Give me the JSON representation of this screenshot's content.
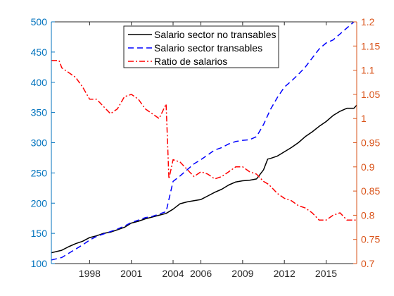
{
  "chart_data": {
    "type": "line",
    "title": "",
    "xlabel": "",
    "ylabel_left": "",
    "ylabel_right": "",
    "x_ticks": [
      "1998",
      "2001",
      "2004",
      "2006",
      "2009",
      "2012",
      "2015"
    ],
    "x_tick_years": [
      1998,
      2001,
      2004,
      2006,
      2009,
      2012,
      2015
    ],
    "xlim": [
      1995.25,
      2017.2
    ],
    "left_axis": {
      "ylim": [
        100,
        500
      ],
      "ticks": [
        100,
        150,
        200,
        250,
        300,
        350,
        400,
        450,
        500
      ],
      "tick_labels": [
        "100",
        "150",
        "200",
        "250",
        "300",
        "350",
        "400",
        "450",
        "500"
      ],
      "color": "#0072BD"
    },
    "right_axis": {
      "ylim": [
        0.7,
        1.2
      ],
      "ticks": [
        0.7,
        0.75,
        0.8,
        0.85,
        0.9,
        0.95,
        1.0,
        1.05,
        1.1,
        1.15,
        1.2
      ],
      "tick_labels": [
        "0.7",
        "0.75",
        "0.8",
        "0.85",
        "0.9",
        "0.95",
        "1",
        "1.05",
        "1.1",
        "1.15",
        "1.2"
      ],
      "color": "#D95319"
    },
    "grid": false,
    "legend_position": "top-center",
    "series": [
      {
        "name": "Salario sector no transables",
        "axis": "left",
        "color": "#000000",
        "style": "solid",
        "points": [
          [
            1995.25,
            118
          ],
          [
            1996,
            122
          ],
          [
            1996.5,
            128
          ],
          [
            1997,
            133
          ],
          [
            1997.5,
            137
          ],
          [
            1998,
            143
          ],
          [
            1998.5,
            146
          ],
          [
            1999,
            150
          ],
          [
            1999.5,
            152
          ],
          [
            2000,
            156
          ],
          [
            2000.5,
            160
          ],
          [
            2001,
            167
          ],
          [
            2001.5,
            170
          ],
          [
            2002,
            174
          ],
          [
            2002.5,
            177
          ],
          [
            2003,
            180
          ],
          [
            2003.5,
            183
          ],
          [
            2004,
            190
          ],
          [
            2004.5,
            199
          ],
          [
            2005,
            202
          ],
          [
            2005.5,
            204
          ],
          [
            2006,
            206
          ],
          [
            2006.5,
            212
          ],
          [
            2007,
            218
          ],
          [
            2007.5,
            223
          ],
          [
            2008,
            230
          ],
          [
            2008.5,
            235
          ],
          [
            2009,
            237
          ],
          [
            2009.5,
            238
          ],
          [
            2010,
            240
          ],
          [
            2010.5,
            255
          ],
          [
            2010.8,
            273
          ],
          [
            2011,
            274
          ],
          [
            2011.5,
            278
          ],
          [
            2012,
            285
          ],
          [
            2012.5,
            292
          ],
          [
            2013,
            300
          ],
          [
            2013.5,
            310
          ],
          [
            2014,
            318
          ],
          [
            2014.5,
            327
          ],
          [
            2015,
            335
          ],
          [
            2015.5,
            345
          ],
          [
            2016,
            352
          ],
          [
            2016.5,
            357
          ],
          [
            2017,
            357
          ],
          [
            2017.2,
            362
          ]
        ]
      },
      {
        "name": "Salario sector transables",
        "axis": "left",
        "color": "#0000FF",
        "style": "dashed",
        "points": [
          [
            1995.25,
            106
          ],
          [
            1996,
            110
          ],
          [
            1996.5,
            117
          ],
          [
            1997,
            124
          ],
          [
            1997.5,
            131
          ],
          [
            1998,
            139
          ],
          [
            1998.5,
            145
          ],
          [
            1999,
            149
          ],
          [
            1999.5,
            153
          ],
          [
            2000,
            157
          ],
          [
            2000.5,
            162
          ],
          [
            2001,
            168
          ],
          [
            2001.5,
            172
          ],
          [
            2002,
            176
          ],
          [
            2002.5,
            178
          ],
          [
            2003,
            182
          ],
          [
            2003.5,
            186
          ],
          [
            2004,
            236
          ],
          [
            2004.5,
            245
          ],
          [
            2005,
            255
          ],
          [
            2005.5,
            265
          ],
          [
            2006,
            272
          ],
          [
            2006.5,
            280
          ],
          [
            2007,
            288
          ],
          [
            2007.5,
            292
          ],
          [
            2008,
            298
          ],
          [
            2008.5,
            302
          ],
          [
            2009,
            304
          ],
          [
            2009.5,
            305
          ],
          [
            2010,
            310
          ],
          [
            2010.5,
            330
          ],
          [
            2011,
            355
          ],
          [
            2011.5,
            375
          ],
          [
            2012,
            392
          ],
          [
            2012.5,
            402
          ],
          [
            2013,
            413
          ],
          [
            2013.5,
            425
          ],
          [
            2014,
            440
          ],
          [
            2014.5,
            455
          ],
          [
            2015,
            465
          ],
          [
            2015.5,
            470
          ],
          [
            2016,
            480
          ],
          [
            2016.5,
            490
          ],
          [
            2017,
            500
          ],
          [
            2017.2,
            505
          ]
        ]
      },
      {
        "name": "Ratio de salarios",
        "axis": "right",
        "color": "#FF0000",
        "style": "dashdot",
        "points": [
          [
            1995.25,
            1.12
          ],
          [
            1995.8,
            1.12
          ],
          [
            1996,
            1.105
          ],
          [
            1996.5,
            1.095
          ],
          [
            1997,
            1.085
          ],
          [
            1997.5,
            1.065
          ],
          [
            1998,
            1.04
          ],
          [
            1998.5,
            1.04
          ],
          [
            1999,
            1.025
          ],
          [
            1999.5,
            1.01
          ],
          [
            2000,
            1.02
          ],
          [
            2000.5,
            1.045
          ],
          [
            2001,
            1.05
          ],
          [
            2001.5,
            1.04
          ],
          [
            2002,
            1.02
          ],
          [
            2002.5,
            1.01
          ],
          [
            2003,
            1.0
          ],
          [
            2003.5,
            1.03
          ],
          [
            2003.7,
            0.875
          ],
          [
            2004,
            0.915
          ],
          [
            2004.5,
            0.91
          ],
          [
            2005,
            0.895
          ],
          [
            2005.5,
            0.88
          ],
          [
            2006,
            0.89
          ],
          [
            2006.5,
            0.885
          ],
          [
            2007,
            0.875
          ],
          [
            2007.5,
            0.88
          ],
          [
            2008,
            0.89
          ],
          [
            2008.5,
            0.9
          ],
          [
            2009,
            0.9
          ],
          [
            2009.5,
            0.89
          ],
          [
            2010,
            0.885
          ],
          [
            2010.5,
            0.87
          ],
          [
            2010.8,
            0.865
          ],
          [
            2011,
            0.86
          ],
          [
            2011.5,
            0.845
          ],
          [
            2012,
            0.835
          ],
          [
            2012.5,
            0.83
          ],
          [
            2013,
            0.82
          ],
          [
            2013.5,
            0.815
          ],
          [
            2014,
            0.805
          ],
          [
            2014.5,
            0.79
          ],
          [
            2015,
            0.79
          ],
          [
            2015.5,
            0.8
          ],
          [
            2016,
            0.805
          ],
          [
            2016.5,
            0.79
          ],
          [
            2017,
            0.79
          ],
          [
            2017.2,
            0.79
          ]
        ]
      }
    ]
  }
}
